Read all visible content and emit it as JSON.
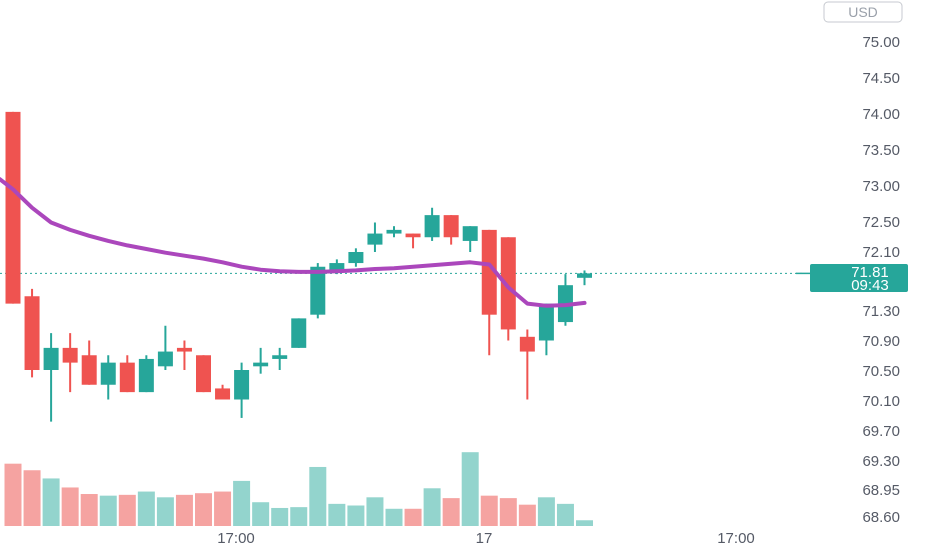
{
  "currency": "USD",
  "colors": {
    "up": "#26a69a",
    "down": "#ef5350",
    "up_volume": "#93d4cd",
    "down_volume": "#f5a3a1",
    "ma": "#ab47bc",
    "price_tag": "#26a69a",
    "price_line": "#26a69a"
  },
  "chart_data": {
    "type": "candlestick",
    "y_ticks": [
      "75.00",
      "74.50",
      "74.00",
      "73.50",
      "73.00",
      "72.50",
      "72.10",
      "71.30",
      "70.90",
      "70.50",
      "70.10",
      "69.70",
      "69.30",
      "68.95",
      "68.60"
    ],
    "x_ticks": [
      "17:00",
      "17",
      "17:00"
    ],
    "current_price": "71.81",
    "countdown": "09:43",
    "candles": [
      {
        "o": 74.0,
        "h": 74.0,
        "l": 71.4,
        "c": 71.4
      },
      {
        "o": 71.5,
        "h": 71.6,
        "l": 70.4,
        "c": 70.5
      },
      {
        "o": 70.5,
        "h": 71.0,
        "l": 69.8,
        "c": 70.8
      },
      {
        "o": 70.8,
        "h": 71.0,
        "l": 70.2,
        "c": 70.6
      },
      {
        "o": 70.7,
        "h": 70.9,
        "l": 70.3,
        "c": 70.3
      },
      {
        "o": 70.3,
        "h": 70.7,
        "l": 70.1,
        "c": 70.6
      },
      {
        "o": 70.6,
        "h": 70.7,
        "l": 70.2,
        "c": 70.2
      },
      {
        "o": 70.2,
        "h": 70.7,
        "l": 70.2,
        "c": 70.65
      },
      {
        "o": 70.55,
        "h": 71.1,
        "l": 70.5,
        "c": 70.75
      },
      {
        "o": 70.8,
        "h": 70.9,
        "l": 70.5,
        "c": 70.75
      },
      {
        "o": 70.7,
        "h": 70.7,
        "l": 70.2,
        "c": 70.2
      },
      {
        "o": 70.25,
        "h": 70.3,
        "l": 70.1,
        "c": 70.1
      },
      {
        "o": 70.1,
        "h": 70.6,
        "l": 69.85,
        "c": 70.5
      },
      {
        "o": 70.55,
        "h": 70.8,
        "l": 70.45,
        "c": 70.6
      },
      {
        "o": 70.65,
        "h": 70.8,
        "l": 70.5,
        "c": 70.7
      },
      {
        "o": 70.8,
        "h": 71.2,
        "l": 70.8,
        "c": 71.2
      },
      {
        "o": 71.25,
        "h": 71.95,
        "l": 71.2,
        "c": 71.9
      },
      {
        "o": 71.85,
        "h": 72.0,
        "l": 71.8,
        "c": 71.95
      },
      {
        "o": 71.95,
        "h": 72.15,
        "l": 71.9,
        "c": 72.1
      },
      {
        "o": 72.2,
        "h": 72.5,
        "l": 72.1,
        "c": 72.35
      },
      {
        "o": 72.35,
        "h": 72.45,
        "l": 72.3,
        "c": 72.4
      },
      {
        "o": 72.35,
        "h": 72.35,
        "l": 72.15,
        "c": 72.3
      },
      {
        "o": 72.3,
        "h": 72.7,
        "l": 72.25,
        "c": 72.6
      },
      {
        "o": 72.6,
        "h": 72.6,
        "l": 72.2,
        "c": 72.3
      },
      {
        "o": 72.25,
        "h": 72.45,
        "l": 72.1,
        "c": 72.45
      },
      {
        "o": 72.4,
        "h": 72.4,
        "l": 70.7,
        "c": 71.25
      },
      {
        "o": 72.3,
        "h": 72.3,
        "l": 70.9,
        "c": 71.05
      },
      {
        "o": 70.95,
        "h": 71.05,
        "l": 70.1,
        "c": 70.75
      },
      {
        "o": 70.9,
        "h": 71.4,
        "l": 70.7,
        "c": 71.4
      },
      {
        "o": 71.15,
        "h": 71.8,
        "l": 71.1,
        "c": 71.65
      },
      {
        "o": 71.75,
        "h": 71.85,
        "l": 71.65,
        "c": 71.81
      }
    ],
    "volumes": [
      0.76,
      0.68,
      0.58,
      0.47,
      0.39,
      0.37,
      0.38,
      0.42,
      0.35,
      0.38,
      0.4,
      0.42,
      0.55,
      0.29,
      0.22,
      0.23,
      0.72,
      0.27,
      0.25,
      0.35,
      0.21,
      0.21,
      0.46,
      0.34,
      0.9,
      0.37,
      0.34,
      0.26,
      0.35,
      0.27,
      0.07
    ],
    "ma": [
      72.95,
      72.7,
      72.5,
      72.4,
      72.32,
      72.25,
      72.19,
      72.14,
      72.09,
      72.05,
      72.01,
      71.96,
      71.9,
      71.86,
      71.84,
      71.83,
      71.83,
      71.84,
      71.85,
      71.87,
      71.88,
      71.9,
      71.92,
      71.94,
      71.96,
      71.93,
      71.62,
      71.4,
      71.37,
      71.38,
      71.41
    ]
  }
}
